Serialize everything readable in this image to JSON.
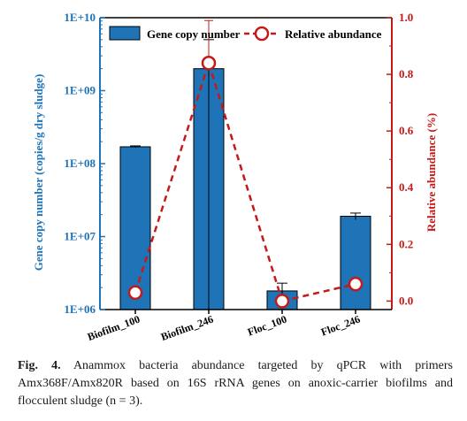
{
  "chart_data": {
    "type": "bar",
    "categories": [
      "Biofilm_100",
      "Biofilm_246",
      "Floc_100",
      "Floc_246"
    ],
    "series": [
      {
        "name": "Gene copy number",
        "chart": "bar",
        "axis": "left",
        "values": [
          170000000,
          2000000000,
          1800000,
          19000000
        ],
        "error": [
          5000000,
          3000000000,
          500000,
          2000000
        ],
        "color": "#1f73b7"
      },
      {
        "name": "Relative abundance",
        "chart": "line",
        "axis": "right",
        "values": [
          0.03,
          0.84,
          0.0,
          0.06
        ],
        "error": [
          0.0,
          0.15,
          0.0,
          0.0
        ],
        "color": "#c41a1a"
      }
    ],
    "left_axis": {
      "label": "Gene copy number (copies/g dry sludge)",
      "scale": "log",
      "ylim": [
        1000000,
        10000000000
      ],
      "ticks": [
        "1E+06",
        "1E+07",
        "1E+08",
        "1E+09",
        "1E+10"
      ],
      "color": "#1f73b7"
    },
    "right_axis": {
      "label": "Relative abundance (%)",
      "scale": "linear",
      "ylim": [
        -0.03,
        1.0
      ],
      "ticks": [
        "0.0",
        "0.2",
        "0.4",
        "0.6",
        "0.8",
        "1.0"
      ],
      "tick_values": [
        0.0,
        0.2,
        0.4,
        0.6,
        0.8,
        1.0
      ],
      "color": "#c41a1a"
    },
    "legend": {
      "placement": "top",
      "entries": [
        "Gene copy number",
        "Relative abundance"
      ]
    }
  },
  "caption": {
    "label": "Fig. 4.",
    "text": "Anammox bacteria abundance targeted by qPCR with primers Amx368F/Amx820R based on 16S rRNA genes on anoxic-carrier biofilms and flocculent sludge (n = 3)."
  }
}
